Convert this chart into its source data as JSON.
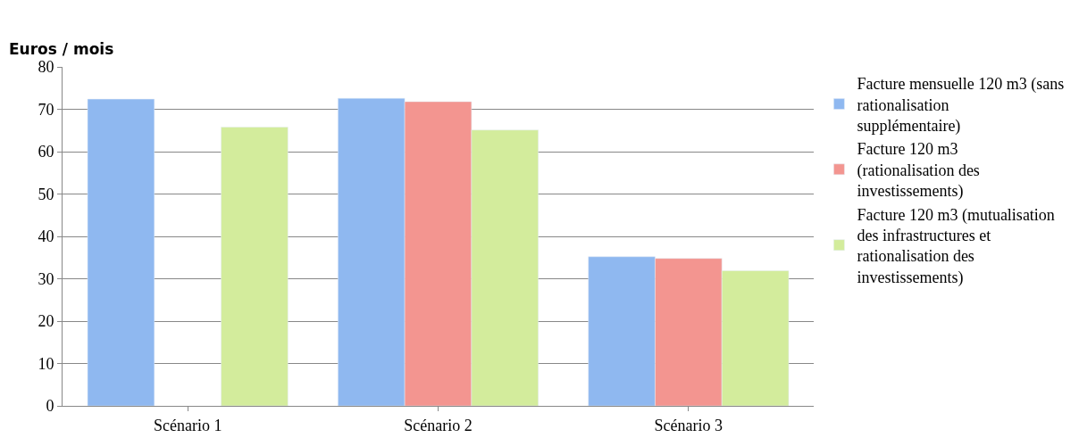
{
  "chart_data": {
    "type": "bar",
    "ylabel": "Euros / mois",
    "categories": [
      "Scénario 1",
      "Scénario 2",
      "Scénario 3"
    ],
    "series": [
      {
        "name": "Facture mensuelle 120 m3 (sans rationalisation supplémentaire)",
        "color": "#8fb8f0",
        "values": [
          72.4,
          72.6,
          35.2
        ]
      },
      {
        "name": "Facture 120 m3 (rationalisation des investissements)",
        "color": "#f39590",
        "values": [
          null,
          71.8,
          34.8
        ]
      },
      {
        "name": "Facture 120 m3 (mutualisation des infrastructures et rationalisation des investissements)",
        "color": "#d3ec9c",
        "values": [
          65.8,
          65.1,
          31.9
        ]
      }
    ],
    "ylim": [
      0,
      80
    ],
    "yticks": [
      0,
      10,
      20,
      30,
      40,
      50,
      60,
      70,
      80
    ],
    "grid": "y",
    "legend": "right"
  }
}
